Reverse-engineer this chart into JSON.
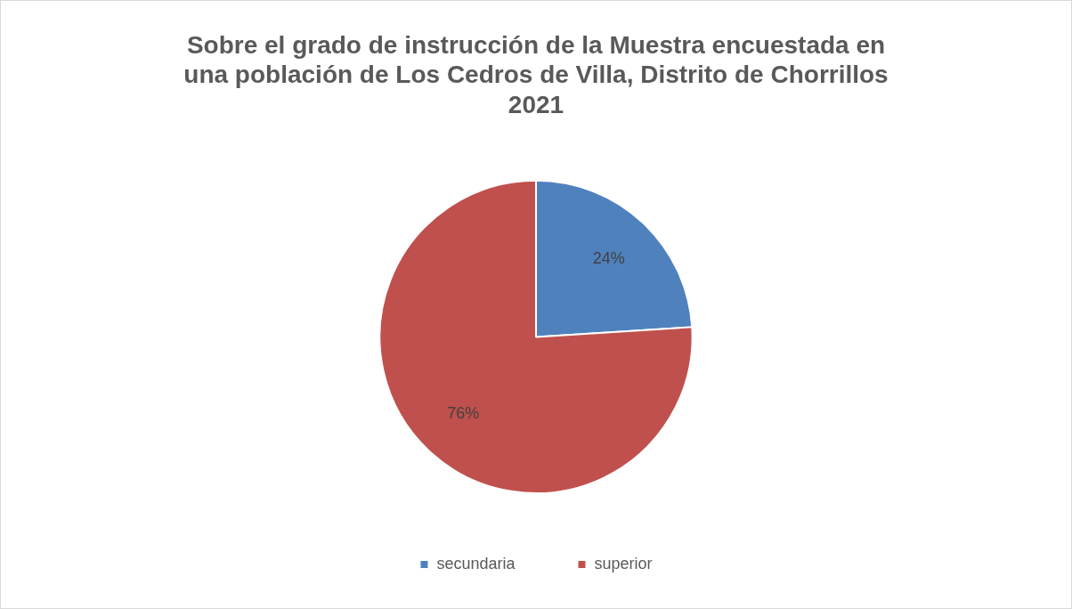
{
  "chart_data": {
    "type": "pie",
    "title": "Sobre el grado de instrucción de la Muestra encuestada en una población de Los Cedros de Villa, Distrito de Chorrillos 2021",
    "categories": [
      "secundaria",
      "superior"
    ],
    "values": [
      24,
      76
    ],
    "colors": [
      "#4f81bd",
      "#c0504d"
    ],
    "value_labels": [
      "24%",
      "76%"
    ],
    "legend": "bottom"
  }
}
